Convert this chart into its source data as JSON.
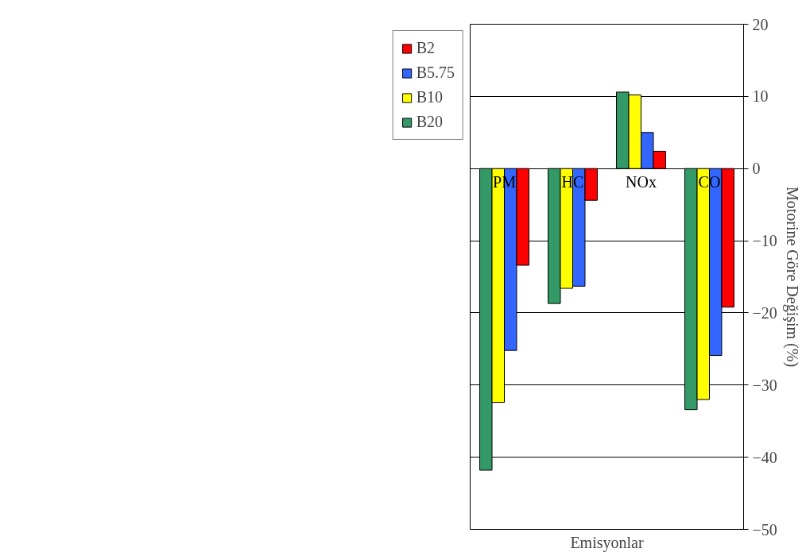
{
  "chart_data": {
    "type": "bar",
    "xlabel": "Emisyonlar",
    "ylabel": "Motorine Göre Değişim (%)",
    "categories": [
      "PM",
      "HC",
      "NOx",
      "CO"
    ],
    "series": [
      {
        "name": "B20",
        "color": "#339966",
        "values": [
          -41.8,
          -18.7,
          10.6,
          -33.4
        ]
      },
      {
        "name": "B10",
        "color": "#ffff00",
        "values": [
          -32.4,
          -16.6,
          10.2,
          -32.0
        ]
      },
      {
        "name": "B5.75",
        "color": "#3366ff",
        "values": [
          -25.2,
          -16.3,
          5.0,
          -25.9
        ]
      },
      {
        "name": "B2",
        "color": "#ff0000",
        "values": [
          -13.4,
          -4.4,
          2.4,
          -19.2
        ]
      }
    ],
    "ylim": [
      -50,
      20
    ],
    "yticks": [
      -50,
      -40,
      -30,
      -20,
      -10,
      0,
      10,
      20
    ],
    "grid": "y",
    "legend": "left"
  }
}
